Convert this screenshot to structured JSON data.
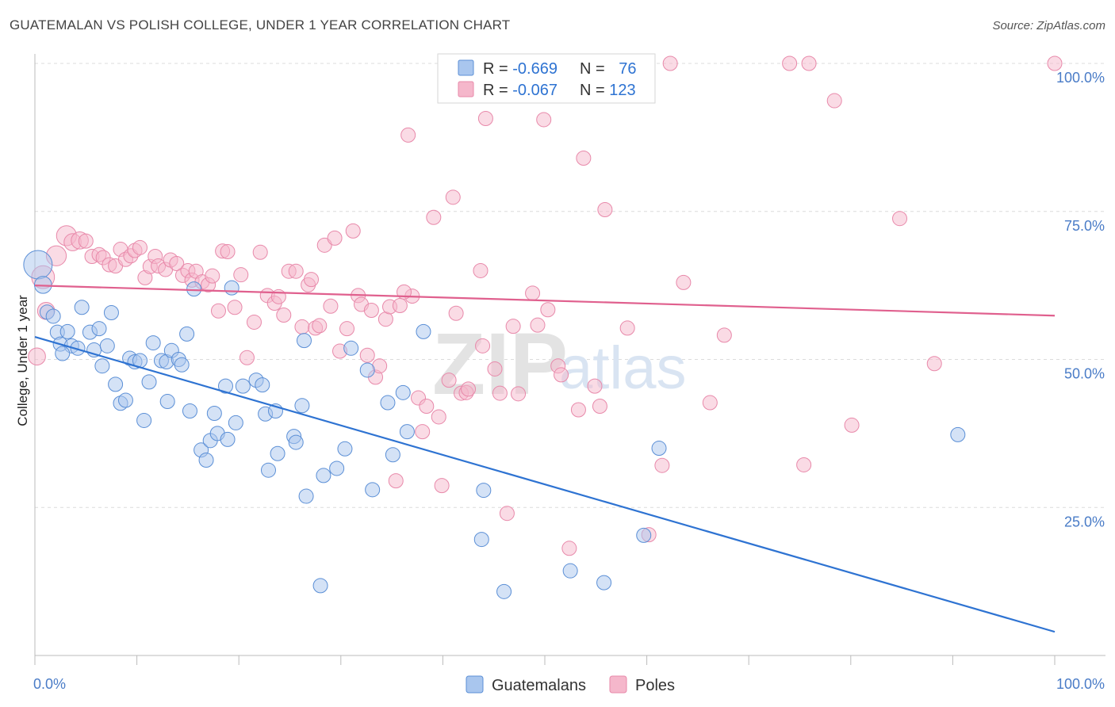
{
  "header": {
    "title": "GUATEMALAN VS POLISH COLLEGE, UNDER 1 YEAR CORRELATION CHART",
    "source": "Source: ZipAtlas.com"
  },
  "watermark": {
    "zip": "ZIP",
    "atlas": "atlas"
  },
  "chart_data": {
    "type": "scatter",
    "title": "GUATEMALAN VS POLISH COLLEGE, UNDER 1 YEAR CORRELATION CHART",
    "xlabel": "",
    "ylabel": "College, Under 1 year",
    "xlim": [
      0,
      100
    ],
    "ylim": [
      0,
      105
    ],
    "x_tick_labels": [
      "0.0%",
      "100.0%"
    ],
    "y_ticks": [
      25,
      50,
      75,
      100
    ],
    "y_tick_labels": [
      "25.0%",
      "50.0%",
      "75.0%",
      "100.0%"
    ],
    "legend_top": [
      {
        "r_label": "R = ",
        "r_value": "-0.669",
        "n_label": "N = ",
        "n_value": "76"
      },
      {
        "r_label": "R = ",
        "r_value": "-0.067",
        "n_label": "N = ",
        "n_value": "123"
      }
    ],
    "colors": {
      "guatemalans_fill": "#a9c6ee",
      "guatemalans_stroke": "#5b8fd6",
      "guatemalans_line": "#2e73d2",
      "poles_fill": "#f5b7cb",
      "poles_stroke": "#e889aa",
      "poles_line": "#e0608e",
      "tick_text": "#4a7cc7",
      "legend_value": "#2e73d2"
    },
    "series": [
      {
        "name": "Guatemalans",
        "trend": {
          "x": [
            0,
            100
          ],
          "y": [
            53.8,
            4.0
          ]
        },
        "points": [
          [
            0.3,
            66.0,
            20
          ],
          [
            0.8,
            62.6,
            12
          ],
          [
            1.2,
            58.0,
            10
          ],
          [
            1.8,
            57.3,
            10
          ],
          [
            2.2,
            54.6,
            10
          ],
          [
            2.5,
            52.6,
            10
          ],
          [
            3.2,
            54.7,
            10
          ],
          [
            3.6,
            52.3,
            10
          ],
          [
            4.2,
            51.9,
            10
          ],
          [
            4.6,
            58.8,
            10
          ],
          [
            5.4,
            54.6,
            10
          ],
          [
            5.8,
            51.6,
            10
          ],
          [
            6.3,
            55.2,
            10
          ],
          [
            6.6,
            48.9,
            10
          ],
          [
            7.1,
            52.3,
            10
          ],
          [
            7.5,
            57.9,
            10
          ],
          [
            7.9,
            45.8,
            10
          ],
          [
            8.4,
            42.6,
            10
          ],
          [
            8.9,
            43.1,
            10
          ],
          [
            9.3,
            50.2,
            10
          ],
          [
            9.8,
            49.6,
            10
          ],
          [
            10.3,
            49.8,
            10
          ],
          [
            10.7,
            39.7,
            10
          ],
          [
            11.2,
            46.2,
            10
          ],
          [
            11.6,
            52.8,
            10
          ],
          [
            12.4,
            49.8,
            10
          ],
          [
            12.9,
            49.6,
            10
          ],
          [
            13.0,
            42.9,
            10
          ],
          [
            13.4,
            51.5,
            10
          ],
          [
            14.1,
            50.0,
            10
          ],
          [
            14.4,
            49.1,
            10
          ],
          [
            14.9,
            54.3,
            10
          ],
          [
            15.2,
            41.3,
            10
          ],
          [
            15.6,
            61.9,
            10
          ],
          [
            16.3,
            34.7,
            10
          ],
          [
            16.8,
            33.0,
            10
          ],
          [
            17.2,
            36.3,
            10
          ],
          [
            17.6,
            40.9,
            10
          ],
          [
            17.9,
            37.5,
            10
          ],
          [
            18.7,
            45.5,
            10
          ],
          [
            18.9,
            36.5,
            10
          ],
          [
            19.3,
            62.1,
            10
          ],
          [
            19.7,
            39.3,
            10
          ],
          [
            20.4,
            45.5,
            10
          ],
          [
            21.7,
            46.5,
            10
          ],
          [
            22.3,
            45.7,
            10
          ],
          [
            22.6,
            40.8,
            10
          ],
          [
            22.9,
            31.3,
            10
          ],
          [
            23.6,
            41.3,
            10
          ],
          [
            23.8,
            34.1,
            10
          ],
          [
            25.4,
            37.0,
            10
          ],
          [
            25.6,
            36.0,
            10
          ],
          [
            26.2,
            42.2,
            10
          ],
          [
            26.4,
            53.2,
            10
          ],
          [
            26.6,
            26.9,
            10
          ],
          [
            28.0,
            11.8,
            10
          ],
          [
            28.3,
            30.4,
            10
          ],
          [
            29.6,
            31.6,
            10
          ],
          [
            30.4,
            34.9,
            10
          ],
          [
            31.0,
            51.9,
            10
          ],
          [
            32.6,
            48.2,
            10
          ],
          [
            33.1,
            28.0,
            10
          ],
          [
            34.6,
            42.7,
            10
          ],
          [
            35.1,
            33.9,
            10
          ],
          [
            36.1,
            44.4,
            10
          ],
          [
            36.5,
            37.8,
            10
          ],
          [
            38.1,
            54.7,
            10
          ],
          [
            43.8,
            19.6,
            10
          ],
          [
            44.0,
            27.9,
            10
          ],
          [
            46.0,
            10.8,
            10
          ],
          [
            52.5,
            14.3,
            10
          ],
          [
            55.8,
            12.3,
            10
          ],
          [
            59.7,
            20.3,
            10
          ],
          [
            61.2,
            35.0,
            10
          ],
          [
            90.5,
            37.3,
            10
          ],
          [
            2.7,
            51.0,
            10
          ]
        ]
      },
      {
        "name": "Poles",
        "trend": {
          "x": [
            0,
            100
          ],
          "y": [
            62.5,
            57.4
          ]
        },
        "points": [
          [
            0.2,
            50.5,
            12
          ],
          [
            0.8,
            63.9,
            16
          ],
          [
            1.1,
            58.2,
            12
          ],
          [
            2.1,
            67.5,
            14
          ],
          [
            3.1,
            70.9,
            14
          ],
          [
            3.7,
            69.8,
            12
          ],
          [
            4.4,
            70.1,
            12
          ],
          [
            5.0,
            70.0,
            10
          ],
          [
            5.6,
            67.4,
            10
          ],
          [
            6.3,
            67.7,
            10
          ],
          [
            6.7,
            67.2,
            10
          ],
          [
            7.3,
            66.0,
            10
          ],
          [
            7.9,
            65.8,
            10
          ],
          [
            8.4,
            68.6,
            10
          ],
          [
            8.9,
            66.9,
            10
          ],
          [
            9.4,
            67.5,
            10
          ],
          [
            9.8,
            68.4,
            10
          ],
          [
            10.3,
            68.9,
            10
          ],
          [
            10.8,
            63.8,
            10
          ],
          [
            11.3,
            65.7,
            10
          ],
          [
            11.8,
            67.4,
            10
          ],
          [
            12.1,
            65.8,
            10
          ],
          [
            12.8,
            65.2,
            10
          ],
          [
            13.3,
            66.8,
            10
          ],
          [
            13.9,
            66.2,
            10
          ],
          [
            14.5,
            64.2,
            10
          ],
          [
            15.0,
            65.0,
            10
          ],
          [
            15.4,
            63.4,
            10
          ],
          [
            15.8,
            64.9,
            10
          ],
          [
            16.4,
            63.1,
            10
          ],
          [
            17.0,
            62.6,
            10
          ],
          [
            17.4,
            64.1,
            10
          ],
          [
            18.0,
            58.2,
            10
          ],
          [
            18.4,
            68.3,
            10
          ],
          [
            18.9,
            68.2,
            10
          ],
          [
            19.6,
            58.8,
            10
          ],
          [
            20.2,
            64.3,
            10
          ],
          [
            20.8,
            50.3,
            10
          ],
          [
            21.5,
            56.3,
            10
          ],
          [
            22.1,
            68.1,
            10
          ],
          [
            22.8,
            60.8,
            10
          ],
          [
            23.5,
            59.5,
            10
          ],
          [
            23.9,
            60.6,
            10
          ],
          [
            24.4,
            57.5,
            10
          ],
          [
            24.9,
            64.9,
            10
          ],
          [
            25.6,
            64.9,
            10
          ],
          [
            26.2,
            55.5,
            10
          ],
          [
            26.8,
            62.6,
            10
          ],
          [
            27.5,
            55.3,
            10
          ],
          [
            27.9,
            55.7,
            10
          ],
          [
            28.4,
            69.3,
            10
          ],
          [
            29.0,
            59.0,
            10
          ],
          [
            29.4,
            70.5,
            10
          ],
          [
            29.9,
            51.4,
            10
          ],
          [
            30.6,
            55.2,
            10
          ],
          [
            31.2,
            71.7,
            10
          ],
          [
            31.7,
            60.8,
            10
          ],
          [
            32.0,
            59.3,
            10
          ],
          [
            32.6,
            50.7,
            10
          ],
          [
            33.0,
            58.3,
            10
          ],
          [
            33.4,
            47.0,
            10
          ],
          [
            33.8,
            48.9,
            10
          ],
          [
            34.4,
            56.8,
            10
          ],
          [
            34.8,
            58.9,
            10
          ],
          [
            35.4,
            29.5,
            10
          ],
          [
            35.8,
            59.1,
            10
          ],
          [
            36.6,
            87.9,
            10
          ],
          [
            37.0,
            60.7,
            10
          ],
          [
            37.6,
            43.5,
            10
          ],
          [
            38.0,
            37.8,
            10
          ],
          [
            38.4,
            42.1,
            10
          ],
          [
            39.1,
            74.0,
            10
          ],
          [
            39.6,
            40.3,
            10
          ],
          [
            39.9,
            28.7,
            10
          ],
          [
            40.6,
            46.5,
            10
          ],
          [
            41.0,
            77.4,
            10
          ],
          [
            41.3,
            57.8,
            10
          ],
          [
            41.8,
            44.3,
            10
          ],
          [
            42.3,
            44.4,
            10
          ],
          [
            42.5,
            45.0,
            10
          ],
          [
            43.7,
            65.0,
            10
          ],
          [
            43.9,
            52.3,
            10
          ],
          [
            44.2,
            90.7,
            10
          ],
          [
            45.1,
            48.4,
            10
          ],
          [
            45.6,
            44.3,
            10
          ],
          [
            46.3,
            24.0,
            10
          ],
          [
            46.9,
            55.6,
            10
          ],
          [
            47.4,
            44.2,
            10
          ],
          [
            48.2,
            100.0,
            10
          ],
          [
            48.8,
            61.2,
            10
          ],
          [
            49.3,
            55.8,
            10
          ],
          [
            49.9,
            90.5,
            10
          ],
          [
            50.3,
            58.4,
            10
          ],
          [
            51.3,
            48.9,
            10
          ],
          [
            51.6,
            47.4,
            10
          ],
          [
            52.4,
            18.1,
            10
          ],
          [
            53.3,
            41.5,
            10
          ],
          [
            53.8,
            84.0,
            10
          ],
          [
            54.9,
            45.5,
            10
          ],
          [
            55.4,
            42.1,
            10
          ],
          [
            55.9,
            75.3,
            10
          ],
          [
            58.1,
            55.3,
            10
          ],
          [
            60.2,
            20.4,
            10
          ],
          [
            61.5,
            32.1,
            10
          ],
          [
            62.3,
            100.0,
            10
          ],
          [
            63.6,
            63.0,
            10
          ],
          [
            66.2,
            42.7,
            10
          ],
          [
            67.6,
            54.1,
            10
          ],
          [
            74.0,
            100.0,
            10
          ],
          [
            75.9,
            100.0,
            10
          ],
          [
            75.4,
            32.2,
            10
          ],
          [
            78.4,
            93.7,
            10
          ],
          [
            80.1,
            38.9,
            10
          ],
          [
            84.8,
            73.8,
            10
          ],
          [
            88.2,
            49.3,
            10
          ],
          [
            100.0,
            100.0,
            10
          ],
          [
            27.1,
            63.5,
            10
          ],
          [
            36.2,
            61.4,
            10
          ]
        ]
      }
    ]
  },
  "legend_bottom": [
    {
      "label": "Guatemalans"
    },
    {
      "label": "Poles"
    }
  ]
}
